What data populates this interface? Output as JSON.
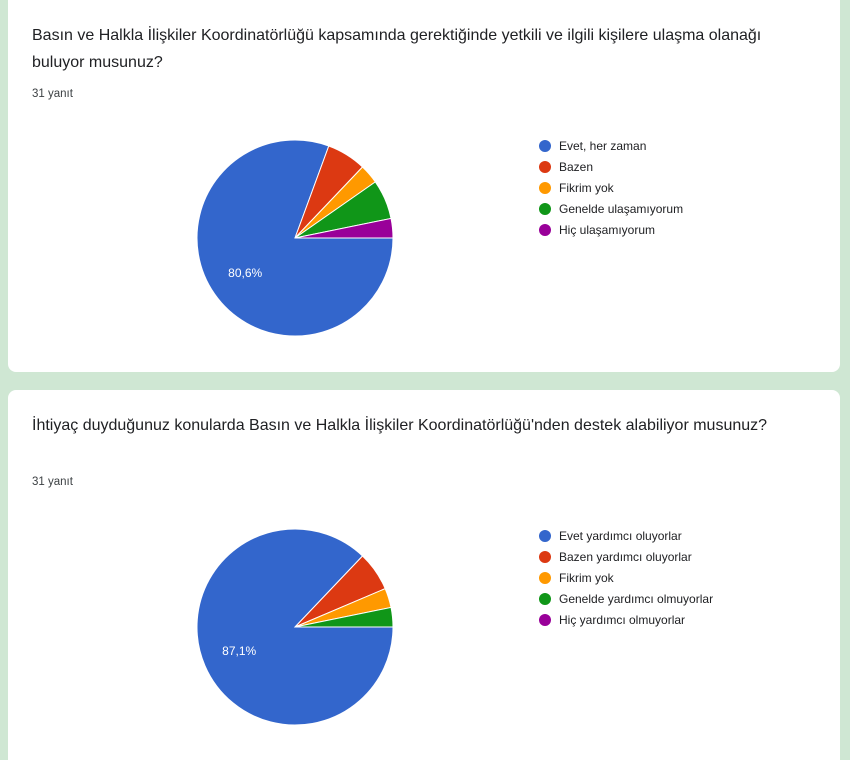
{
  "cards": [
    {
      "question": "Basın ve Halkla İlişkiler Koordinatörlüğü kapsamında gerektiğinde yetkili ve ilgili kişilere ulaşma olanağı buluyor musunuz?",
      "response_count": "31 yanıt"
    },
    {
      "question": "İhtiyaç duyduğunuz konularda Basın ve Halkla İlişkiler Koordinatörlüğü'nden destek alabiliyor musunuz?",
      "response_count": "31 yanıt"
    }
  ],
  "chart_data": [
    {
      "type": "pie",
      "unit": "percent",
      "categories": [
        "Evet, her zaman",
        "Bazen",
        "Fikrim yok",
        "Genelde ulaşamıyorum",
        "Hiç ulaşamıyorum"
      ],
      "values": [
        80.6,
        6.5,
        3.2,
        6.5,
        3.2
      ],
      "colors": [
        "#3366cc",
        "#dc3912",
        "#ff9900",
        "#109618",
        "#990099"
      ],
      "slice_labels": [
        "80,6%",
        "",
        "",
        "",
        ""
      ],
      "legend_position": "right"
    },
    {
      "type": "pie",
      "unit": "percent",
      "categories": [
        "Evet yardımcı oluyorlar",
        "Bazen yardımcı oluyorlar",
        "Fikrim yok",
        "Genelde yardımcı olmuyorlar",
        "Hiç yardımcı olmuyorlar"
      ],
      "values": [
        87.1,
        6.5,
        3.2,
        3.2,
        0
      ],
      "colors": [
        "#3366cc",
        "#dc3912",
        "#ff9900",
        "#109618",
        "#990099"
      ],
      "slice_labels": [
        "87,1%",
        "",
        "",
        "",
        ""
      ],
      "legend_position": "right"
    }
  ]
}
